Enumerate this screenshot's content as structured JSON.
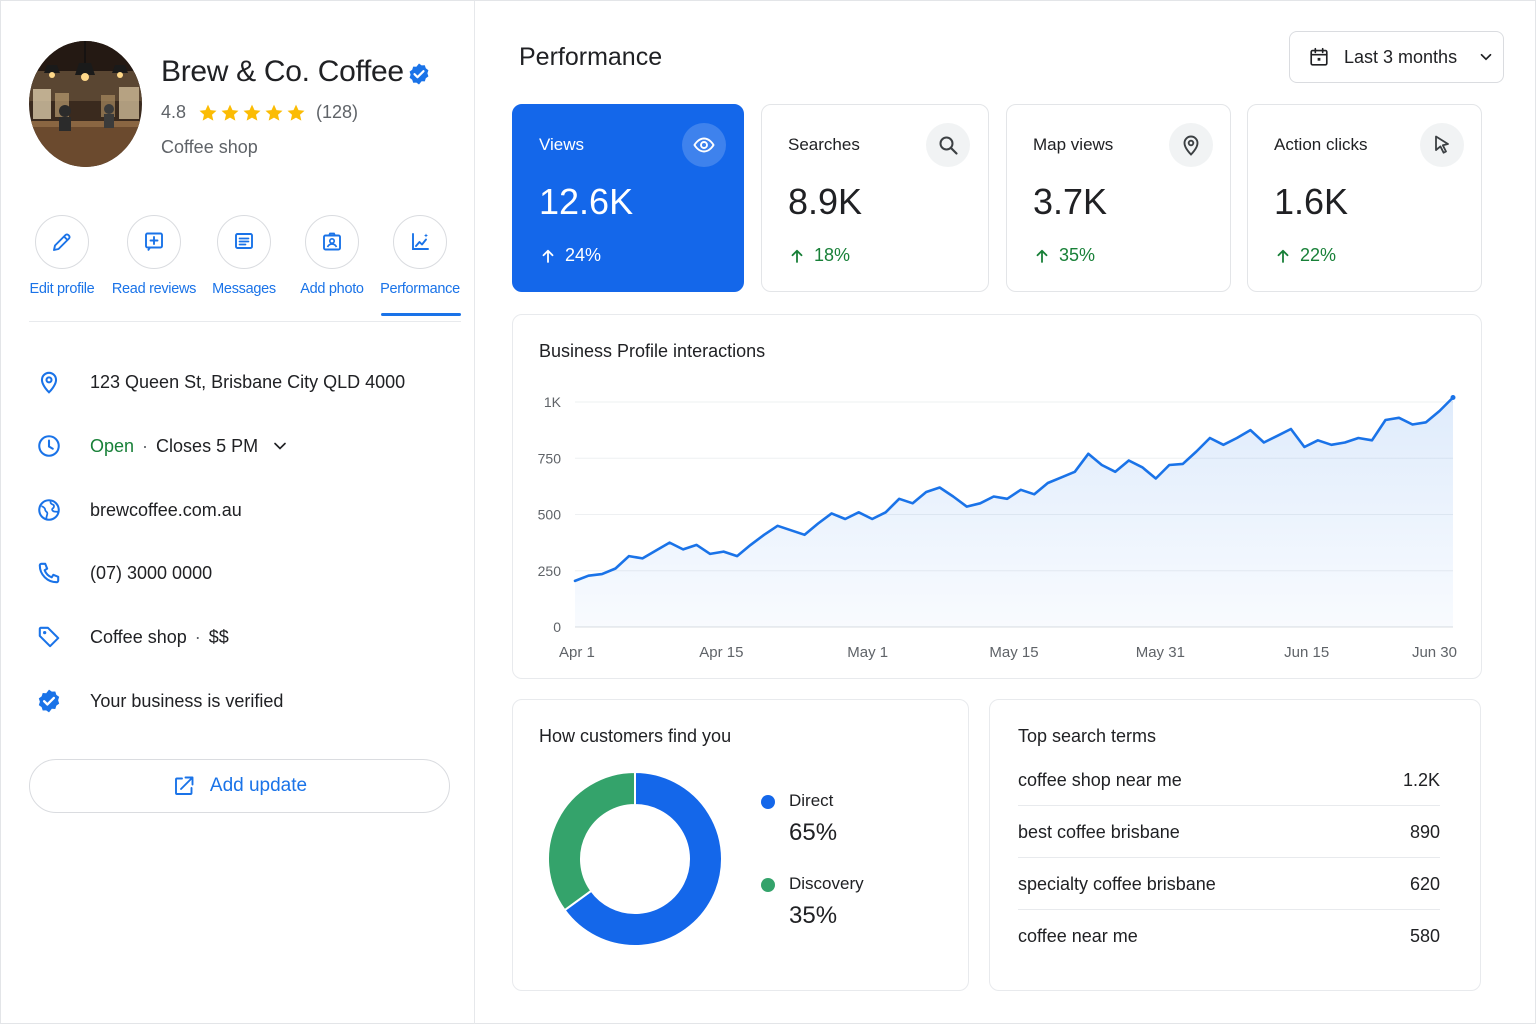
{
  "business": {
    "name": "Brew & Co. Coffee",
    "rating": "4.8",
    "stars": 5,
    "reviews_count": "(128)",
    "category": "Coffee shop"
  },
  "actions": [
    {
      "label": "Edit profile",
      "icon": "pencil-icon"
    },
    {
      "label": "Read reviews",
      "icon": "review-icon"
    },
    {
      "label": "Messages",
      "icon": "message-icon"
    },
    {
      "label": "Add photo",
      "icon": "photo-icon"
    },
    {
      "label": "Performance",
      "icon": "performance-icon"
    }
  ],
  "active_tab": "Performance",
  "info": {
    "address": "123 Queen St, Brisbane City QLD 4000",
    "hours_status": "Open",
    "hours_close": "Closes 5 PM",
    "website": "brewcoffee.com.au",
    "phone": "(07) 3000 0000",
    "category": "Coffee shop",
    "price": "$$",
    "verified_text": "Your business is verified"
  },
  "add_update_label": "Add update",
  "main": {
    "title": "Performance",
    "date_range": "Last 3 months"
  },
  "metrics": [
    {
      "label": "Views",
      "value": "12.6K",
      "change": "24%",
      "icon": "eye-icon",
      "active": true
    },
    {
      "label": "Searches",
      "value": "8.9K",
      "change": "18%",
      "icon": "search-icon",
      "active": false
    },
    {
      "label": "Map views",
      "value": "3.7K",
      "change": "35%",
      "icon": "map-pin-icon",
      "active": false
    },
    {
      "label": "Action clicks",
      "value": "1.6K",
      "change": "22%",
      "icon": "cursor-icon",
      "active": false
    }
  ],
  "colors": {
    "accent": "#1a73e8",
    "active_card": "#1467ea",
    "positive": "#188038",
    "discovery": "#34a36b",
    "star": "#fbbc04"
  },
  "chart_data": [
    {
      "type": "area",
      "title": "Business Profile interactions",
      "x_tick_labels": [
        "Apr 1",
        "Apr 15",
        "May 1",
        "May 15",
        "May 31",
        "Jun 15",
        "Jun 30"
      ],
      "y_tick_labels": [
        "0",
        "250",
        "500",
        "750",
        "1K"
      ],
      "ylim": [
        0,
        1000
      ],
      "grid": true,
      "series": [
        {
          "values": [
            205,
            228,
            235,
            260,
            315,
            305,
            340,
            375,
            345,
            365,
            325,
            335,
            315,
            365,
            410,
            450,
            430,
            410,
            460,
            505,
            480,
            510,
            480,
            510,
            570,
            550,
            600,
            620,
            580,
            535,
            550,
            580,
            570,
            610,
            590,
            640,
            665,
            690,
            770,
            720,
            690,
            740,
            710,
            660,
            720,
            725,
            780,
            840,
            810,
            840,
            875,
            820,
            850,
            880,
            800,
            830,
            810,
            820,
            840,
            830,
            920,
            930,
            900,
            910,
            960,
            1020
          ]
        }
      ]
    },
    {
      "type": "pie",
      "title": "How customers find you",
      "series": [
        {
          "name": "Direct",
          "label": "65%",
          "value": 65,
          "color": "#1467ea"
        },
        {
          "name": "Discovery",
          "label": "35%",
          "value": 35,
          "color": "#34a36b"
        }
      ]
    }
  ],
  "top_terms": {
    "title": "Top search terms",
    "rows": [
      {
        "term": "coffee shop near me",
        "value": "1.2K"
      },
      {
        "term": "best coffee brisbane",
        "value": "890"
      },
      {
        "term": "specialty coffee brisbane",
        "value": "620"
      },
      {
        "term": "coffee near me",
        "value": "580"
      }
    ]
  }
}
